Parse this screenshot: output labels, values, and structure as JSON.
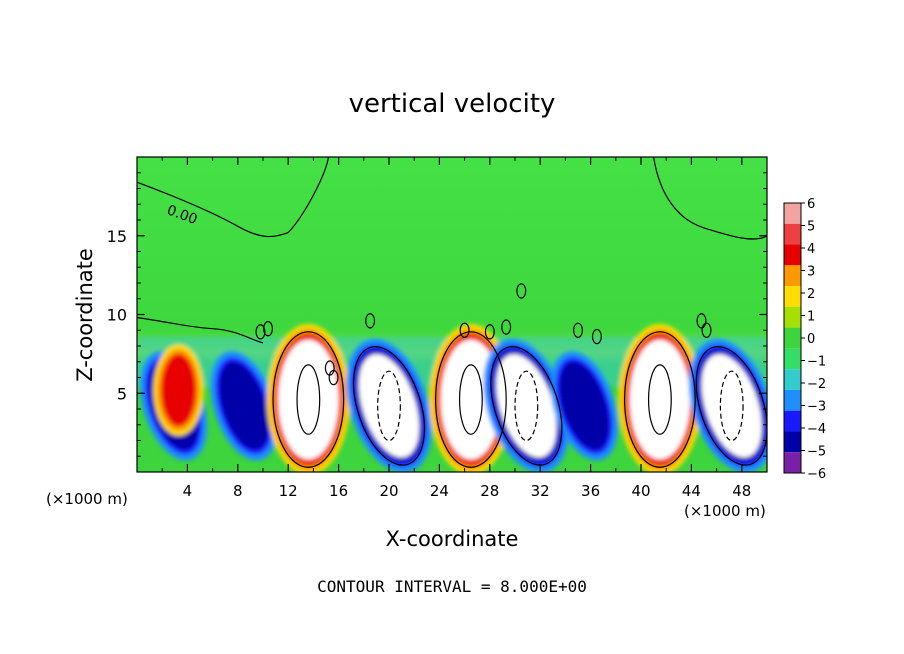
{
  "chart_data": {
    "type": "heatmap",
    "title": "vertical velocity",
    "xlabel": "X-coordinate",
    "ylabel": "Z-coordinate",
    "x_unit_left": "(×1000 m)",
    "x_unit_right": "(×1000 m)",
    "xlim": [
      0,
      50
    ],
    "ylim": [
      0,
      20
    ],
    "xticks": [
      4,
      8,
      12,
      16,
      20,
      24,
      28,
      32,
      36,
      40,
      44,
      48
    ],
    "yticks": [
      5,
      10,
      15
    ],
    "colorbar": {
      "labels": [
        "6",
        "5",
        "4",
        "3",
        "2",
        "1",
        "0",
        "−1",
        "−2",
        "−3",
        "−4",
        "−5",
        "−6"
      ],
      "colors": [
        "#f4a3a3",
        "#ee4040",
        "#e80000",
        "#ff9900",
        "#ffdd00",
        "#a6e000",
        "#3ed43e",
        "#33dd66",
        "#33cccc",
        "#1f8fff",
        "#1a1aff",
        "#0000a8",
        "#7a1fa8"
      ]
    },
    "contour_label": "0.00",
    "contour_interval_text": "CONTOUR INTERVAL = 8.000E+00",
    "background": "#3cdc3c",
    "upper_background": "#44e046",
    "cells": [
      {
        "x": 2.9,
        "type": "down",
        "peak": -5.5
      },
      {
        "x": 3.3,
        "type": "up",
        "peak": 5.0
      },
      {
        "x": 8.5,
        "type": "down",
        "peak": -6
      },
      {
        "x": 13.6,
        "type": "up",
        "peak": 8
      },
      {
        "x": 20.0,
        "type": "down",
        "peak": -8
      },
      {
        "x": 26.5,
        "type": "up",
        "peak": 8
      },
      {
        "x": 30.9,
        "type": "down",
        "peak": -8
      },
      {
        "x": 35.5,
        "type": "down",
        "peak": -6
      },
      {
        "x": 41.5,
        "type": "up",
        "peak": 9
      },
      {
        "x": 47.2,
        "type": "down",
        "peak": -8
      }
    ]
  }
}
